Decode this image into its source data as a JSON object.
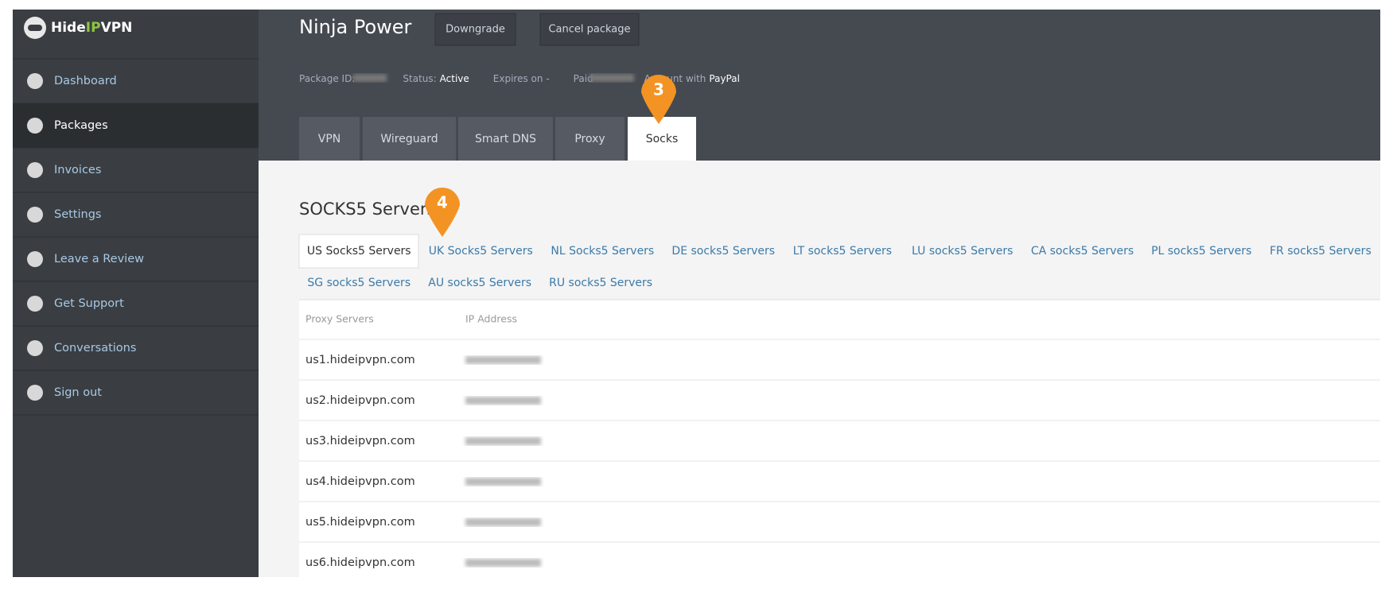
{
  "brand": {
    "pre": "Hide",
    "mid": "IP",
    "post": "VPN"
  },
  "sidebar": {
    "items": [
      "Dashboard",
      "Packages",
      "Invoices",
      "Settings",
      "Leave a Review",
      "Get Support",
      "Conversations",
      "Sign out"
    ],
    "active": 1
  },
  "header": {
    "title": "Ninja Power",
    "buttons": [
      "Downgrade",
      "Cancel package"
    ],
    "info": {
      "package_id": "Package ID:",
      "status_label": "Status:",
      "status": "Active",
      "expires": "Expires on -",
      "paid": "Paid",
      "account": "Account with",
      "method": "PayPal"
    },
    "tabs": [
      "VPN",
      "Wireguard",
      "Smart DNS",
      "Proxy",
      "Socks"
    ],
    "active_tab": 4
  },
  "markers": [
    "3",
    "4"
  ],
  "section": {
    "title": "SOCKS5 Servers",
    "subtabs": [
      "US Socks5 Servers",
      "UK Socks5 Servers",
      "NL Socks5 Servers",
      "DE socks5 Servers",
      "LT socks5 Servers",
      "LU socks5 Servers",
      "CA socks5 Servers",
      "PL socks5 Servers",
      "FR socks5 Servers",
      "SG socks5 Servers",
      "AU socks5 Servers",
      "RU socks5 Servers"
    ]
  },
  "table": {
    "columns": [
      "Proxy Servers",
      "IP Address"
    ],
    "rows": [
      "us1.hideipvpn.com",
      "us2.hideipvpn.com",
      "us3.hideipvpn.com",
      "us4.hideipvpn.com",
      "us5.hideipvpn.com",
      "us6.hideipvpn.com"
    ]
  }
}
